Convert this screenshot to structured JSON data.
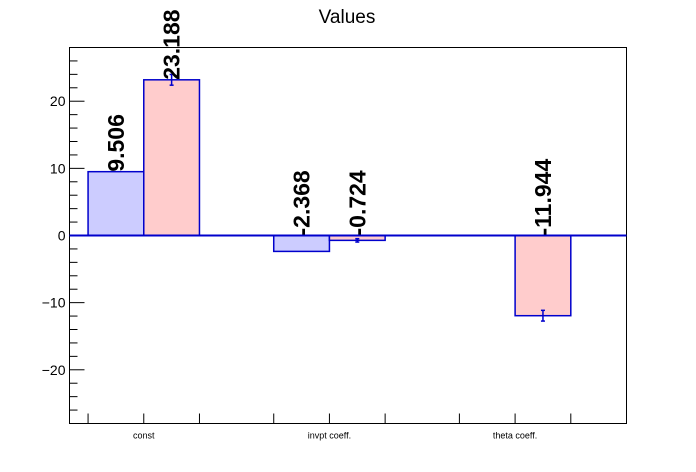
{
  "chart_data": {
    "type": "bar",
    "title": "Values",
    "xlabel": "",
    "ylabel": "",
    "ylim": [
      -28,
      28
    ],
    "yticks": [
      -20,
      -10,
      0,
      10,
      20
    ],
    "categories": [
      "const",
      "invpt coeff.",
      "theta coeff."
    ],
    "series": [
      {
        "color": "#ccccff",
        "values": [
          9.506,
          -2.368,
          null
        ],
        "errors": [
          0,
          0,
          0
        ],
        "labels": [
          "9.506",
          "-2.368",
          ""
        ]
      },
      {
        "color": "#ffcccc",
        "values": [
          23.188,
          -0.724,
          -11.944
        ],
        "errors": [
          0.8,
          0.25,
          0.8
        ],
        "labels": [
          "23.188",
          "-0.724",
          "-11.944"
        ]
      }
    ],
    "edge_color": "#0000cc",
    "grid": false,
    "legend": "none"
  }
}
